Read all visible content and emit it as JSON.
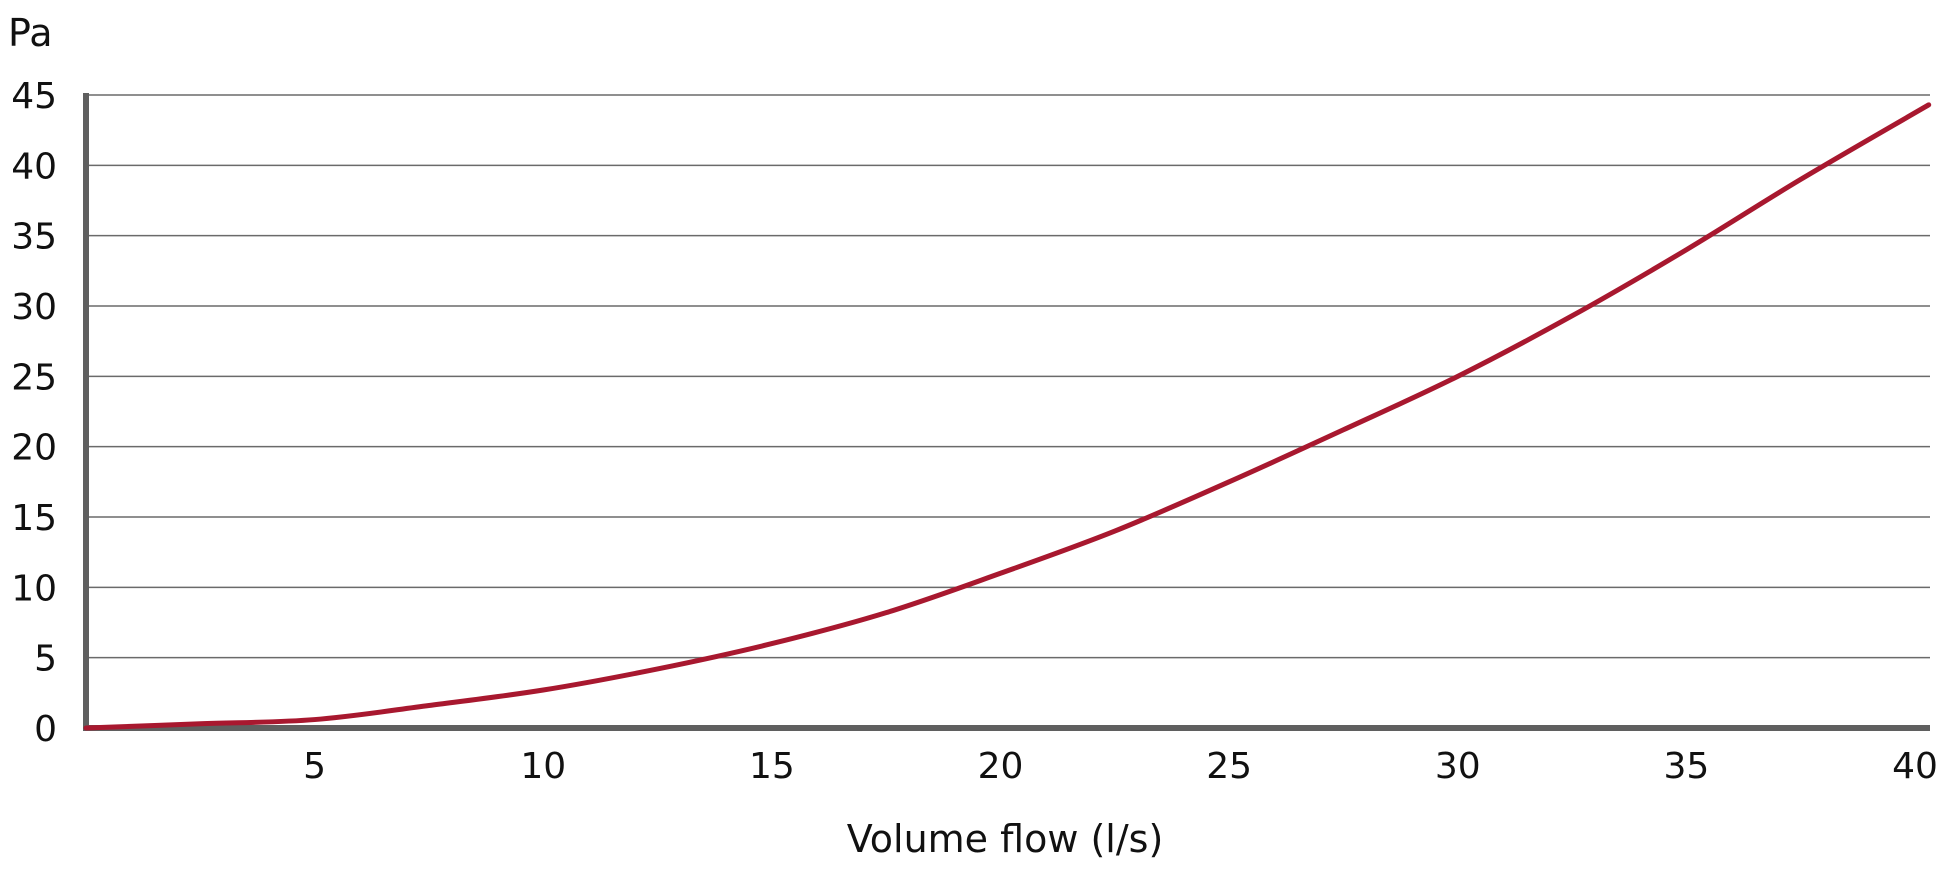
{
  "chart_data": {
    "type": "line",
    "title": "",
    "xlabel": "Volume flow (l/s)",
    "ylabel": "Pa",
    "xlim": [
      0,
      40
    ],
    "ylim": [
      0,
      45
    ],
    "x_ticks": [
      "5",
      "10",
      "15",
      "20",
      "25",
      "30",
      "35",
      "40"
    ],
    "y_ticks": [
      "0",
      "5",
      "10",
      "15",
      "20",
      "25",
      "30",
      "35",
      "40",
      "45"
    ],
    "grid": "horizontal",
    "series": [
      {
        "color": "#a8182f",
        "x": [
          0,
          2.5,
          5,
          7.5,
          10,
          12.5,
          15,
          17.5,
          20,
          22.5,
          25,
          27.5,
          30,
          32.5,
          35,
          37.5,
          40.3
        ],
        "y": [
          0,
          0.3,
          0.6,
          1.6,
          2.7,
          4.2,
          6.0,
          8.2,
          11.0,
          14.0,
          17.5,
          21.2,
          25.0,
          29.3,
          34.0,
          39.0,
          44.3
        ]
      }
    ]
  }
}
